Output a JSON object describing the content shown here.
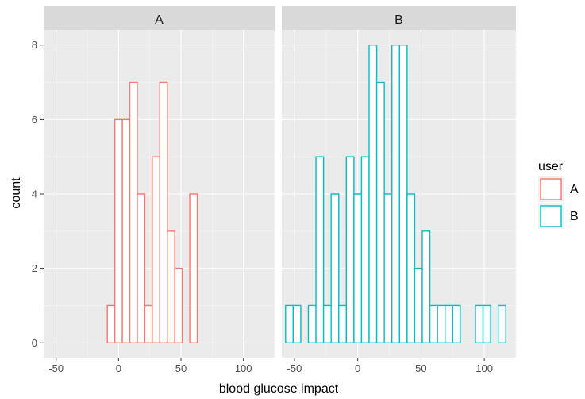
{
  "chart_data": {
    "type": "bar",
    "subtype": "histogram",
    "xlabel": "blood glucose impact",
    "ylabel": "count",
    "xlim": [
      -60,
      125
    ],
    "ylim": [
      -0.4,
      8.4
    ],
    "xticks": [
      -50,
      0,
      50,
      100
    ],
    "yticks": [
      0,
      2,
      4,
      6,
      8
    ],
    "bin_width": 6,
    "grid": true,
    "legend": {
      "title": "user",
      "position": "right",
      "entries": [
        {
          "label": "A",
          "color": "#F8766D"
        },
        {
          "label": "B",
          "color": "#00BFC4"
        }
      ]
    },
    "panels": [
      {
        "label": "A",
        "color": "#F8766D",
        "bins": [
          {
            "x": -54,
            "count": 0
          },
          {
            "x": -48,
            "count": 0
          },
          {
            "x": -42,
            "count": 0
          },
          {
            "x": -36,
            "count": 0
          },
          {
            "x": -30,
            "count": 0
          },
          {
            "x": -24,
            "count": 0
          },
          {
            "x": -18,
            "count": 0
          },
          {
            "x": -12,
            "count": 0
          },
          {
            "x": -6,
            "count": 1
          },
          {
            "x": 0,
            "count": 6
          },
          {
            "x": 6,
            "count": 6
          },
          {
            "x": 12,
            "count": 7
          },
          {
            "x": 18,
            "count": 4
          },
          {
            "x": 24,
            "count": 1
          },
          {
            "x": 30,
            "count": 5
          },
          {
            "x": 36,
            "count": 7
          },
          {
            "x": 42,
            "count": 3
          },
          {
            "x": 48,
            "count": 2
          },
          {
            "x": 54,
            "count": 0
          },
          {
            "x": 60,
            "count": 4
          },
          {
            "x": 66,
            "count": 0
          },
          {
            "x": 72,
            "count": 0
          },
          {
            "x": 78,
            "count": 0
          },
          {
            "x": 84,
            "count": 0
          },
          {
            "x": 90,
            "count": 0
          },
          {
            "x": 96,
            "count": 0
          },
          {
            "x": 102,
            "count": 0
          },
          {
            "x": 108,
            "count": 0
          },
          {
            "x": 114,
            "count": 0
          }
        ]
      },
      {
        "label": "B",
        "color": "#00BFC4",
        "bins": [
          {
            "x": -54,
            "count": 1
          },
          {
            "x": -48,
            "count": 1
          },
          {
            "x": -42,
            "count": 0
          },
          {
            "x": -36,
            "count": 1
          },
          {
            "x": -30,
            "count": 5
          },
          {
            "x": -24,
            "count": 1
          },
          {
            "x": -18,
            "count": 4
          },
          {
            "x": -12,
            "count": 1
          },
          {
            "x": -6,
            "count": 5
          },
          {
            "x": 0,
            "count": 4
          },
          {
            "x": 6,
            "count": 5
          },
          {
            "x": 12,
            "count": 8
          },
          {
            "x": 18,
            "count": 7
          },
          {
            "x": 24,
            "count": 4
          },
          {
            "x": 30,
            "count": 8
          },
          {
            "x": 36,
            "count": 8
          },
          {
            "x": 42,
            "count": 4
          },
          {
            "x": 48,
            "count": 2
          },
          {
            "x": 54,
            "count": 3
          },
          {
            "x": 60,
            "count": 1
          },
          {
            "x": 66,
            "count": 1
          },
          {
            "x": 72,
            "count": 1
          },
          {
            "x": 78,
            "count": 1
          },
          {
            "x": 84,
            "count": 0
          },
          {
            "x": 90,
            "count": 0
          },
          {
            "x": 96,
            "count": 1
          },
          {
            "x": 102,
            "count": 1
          },
          {
            "x": 108,
            "count": 0
          },
          {
            "x": 114,
            "count": 1
          }
        ]
      }
    ]
  }
}
